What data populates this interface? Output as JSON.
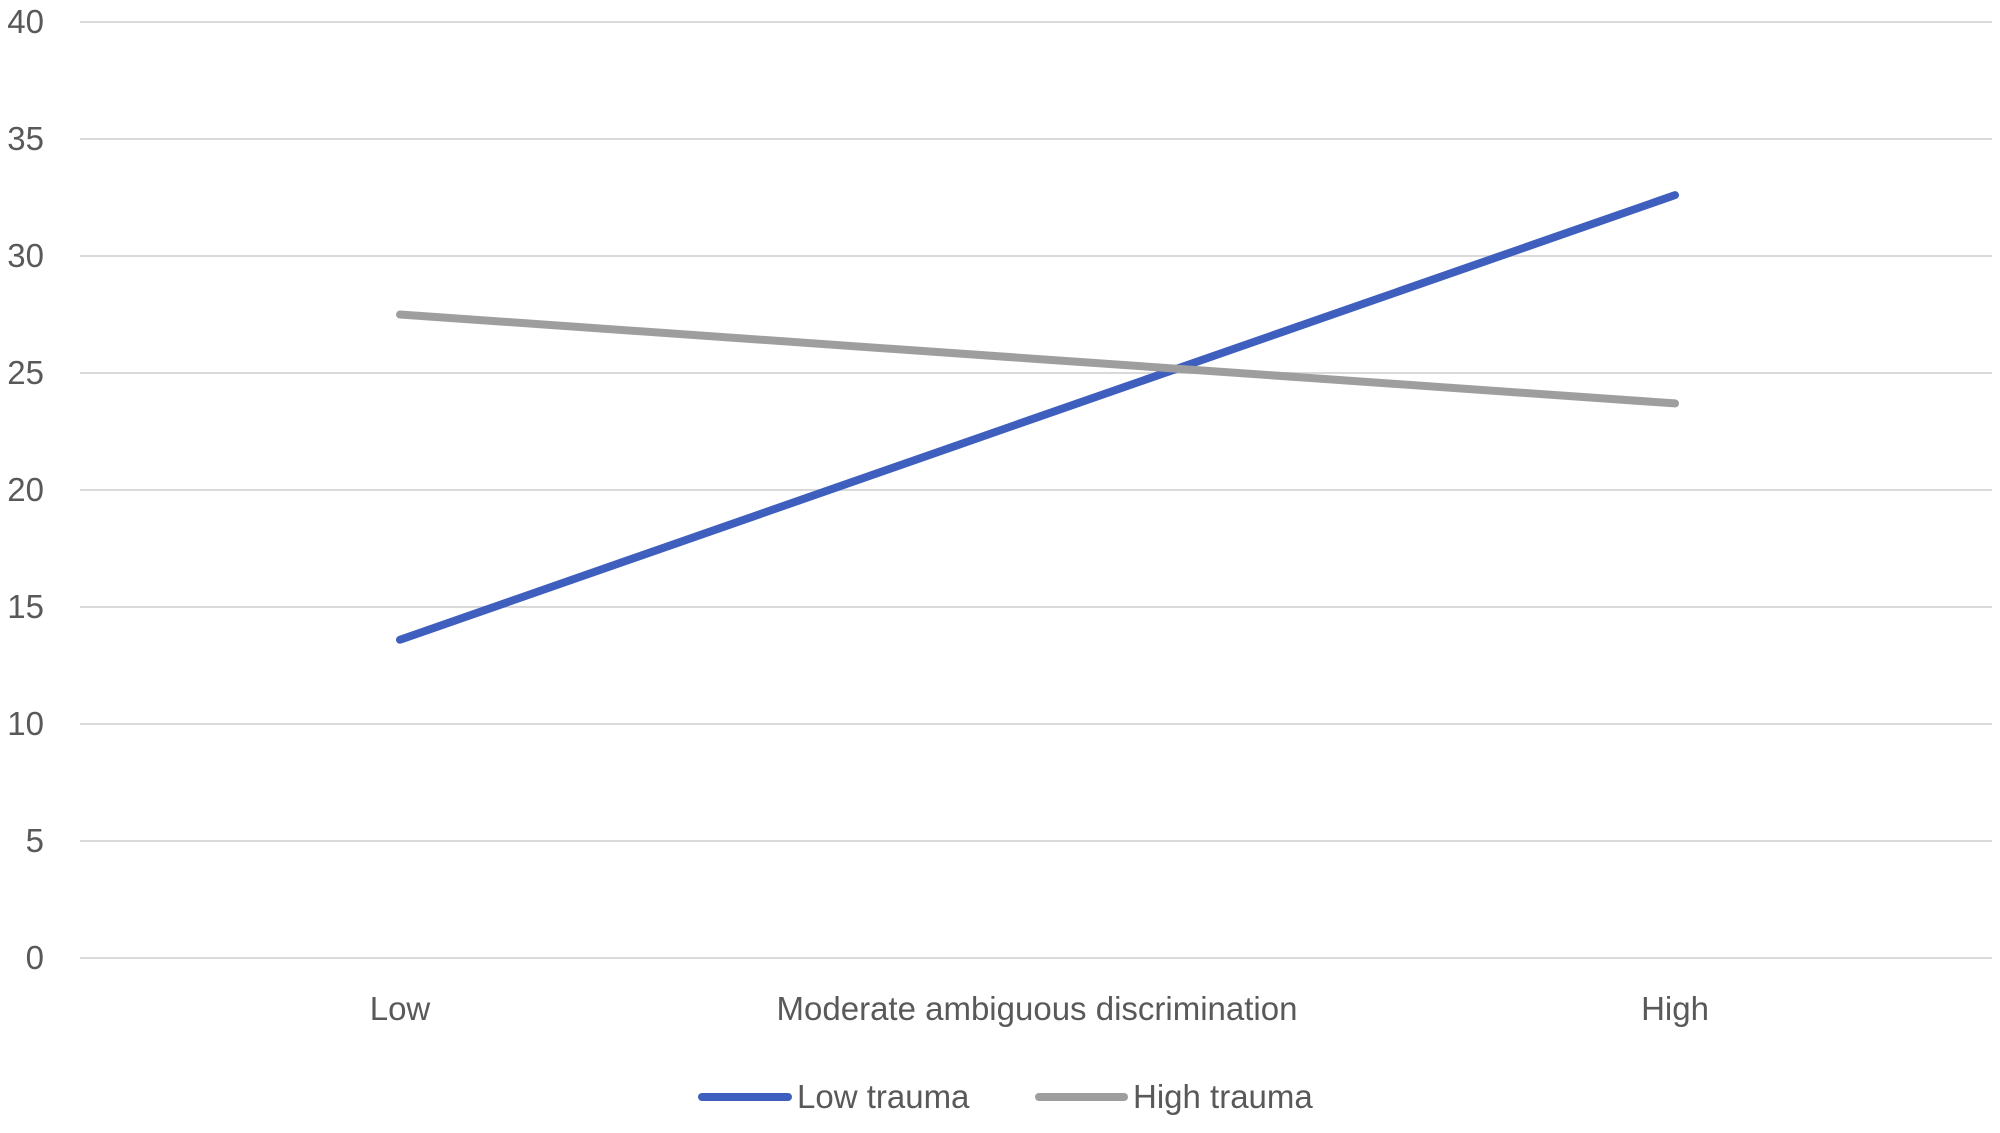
{
  "chart_data": {
    "type": "line",
    "title": "",
    "xlabel": "",
    "ylabel": "",
    "categories": [
      "Low",
      "Moderate ambiguous discrimination",
      "High"
    ],
    "ylim": [
      0,
      40
    ],
    "yticks": [
      0,
      5,
      10,
      15,
      20,
      25,
      30,
      35,
      40
    ],
    "grid": true,
    "legend_position": "bottom",
    "series": [
      {
        "name": "Low trauma",
        "color": "#3f5fbf",
        "values": [
          13.6,
          23.1,
          32.6
        ]
      },
      {
        "name": "High trauma",
        "color": "#9e9e9e",
        "values": [
          27.5,
          25.6,
          23.7
        ]
      }
    ]
  }
}
